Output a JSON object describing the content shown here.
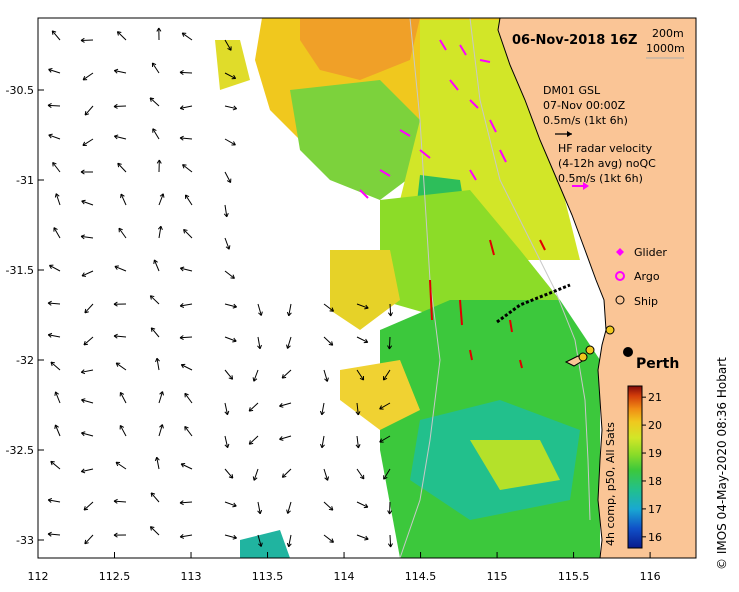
{
  "title": "06-Nov-2018 16Z",
  "depth_legend": {
    "line1": "200m",
    "line2": "1000m"
  },
  "glider_annotation": {
    "line1": "DM01 GSL",
    "line2": "07-Nov 00:00Z",
    "line3": "0.5m/s (1kt 6h)"
  },
  "hf_annotation": {
    "line1": "HF radar velocity",
    "line2": "(4-12h avg) noQC",
    "line3": "0.5m/s (1kt 6h)"
  },
  "legend": [
    {
      "label": "Glider",
      "color": "#ff00ff",
      "symbol": "diamond"
    },
    {
      "label": "Argo",
      "color": "#ff00ff",
      "symbol": "circle"
    },
    {
      "label": "Ship",
      "color": "#000000",
      "symbol": "circle-open"
    }
  ],
  "city_label": "Perth",
  "colorbar": {
    "title": "4h comp, p50, All Sats",
    "ticks": [
      "21",
      "20",
      "19",
      "18",
      "17",
      "16"
    ],
    "min": 15.6,
    "max": 21.4,
    "colors": [
      "#0a1a8c",
      "#1050c8",
      "#19a8d2",
      "#22c08c",
      "#3cc83c",
      "#8cdc28",
      "#d2e628",
      "#f0c81e",
      "#f08c14",
      "#d23c0a",
      "#820a0a"
    ]
  },
  "credit": "© IMOS 04-May-2020 08:36 Hobart",
  "x_axis": {
    "ticks": [
      "112",
      "112.5",
      "113",
      "113.5",
      "114",
      "114.5",
      "115",
      "115.5",
      "116"
    ],
    "values": [
      112,
      112.5,
      113,
      113.5,
      114,
      114.5,
      115,
      115.5,
      116
    ]
  },
  "y_axis": {
    "ticks": [
      "-30.5",
      "-31",
      "-31.5",
      "-32",
      "-32.5",
      "-33"
    ],
    "values": [
      -30.5,
      -31,
      -31.5,
      -32,
      -32.5,
      -33
    ]
  },
  "extent": {
    "lon_min": 112,
    "lon_max": 116.3,
    "lat_min": -33.1,
    "lat_max": -30.1
  },
  "colors": {
    "land": "#fac596",
    "frame": "#000000",
    "hf_vector": "#ff00ff",
    "glider_vector": "#e00000"
  }
}
